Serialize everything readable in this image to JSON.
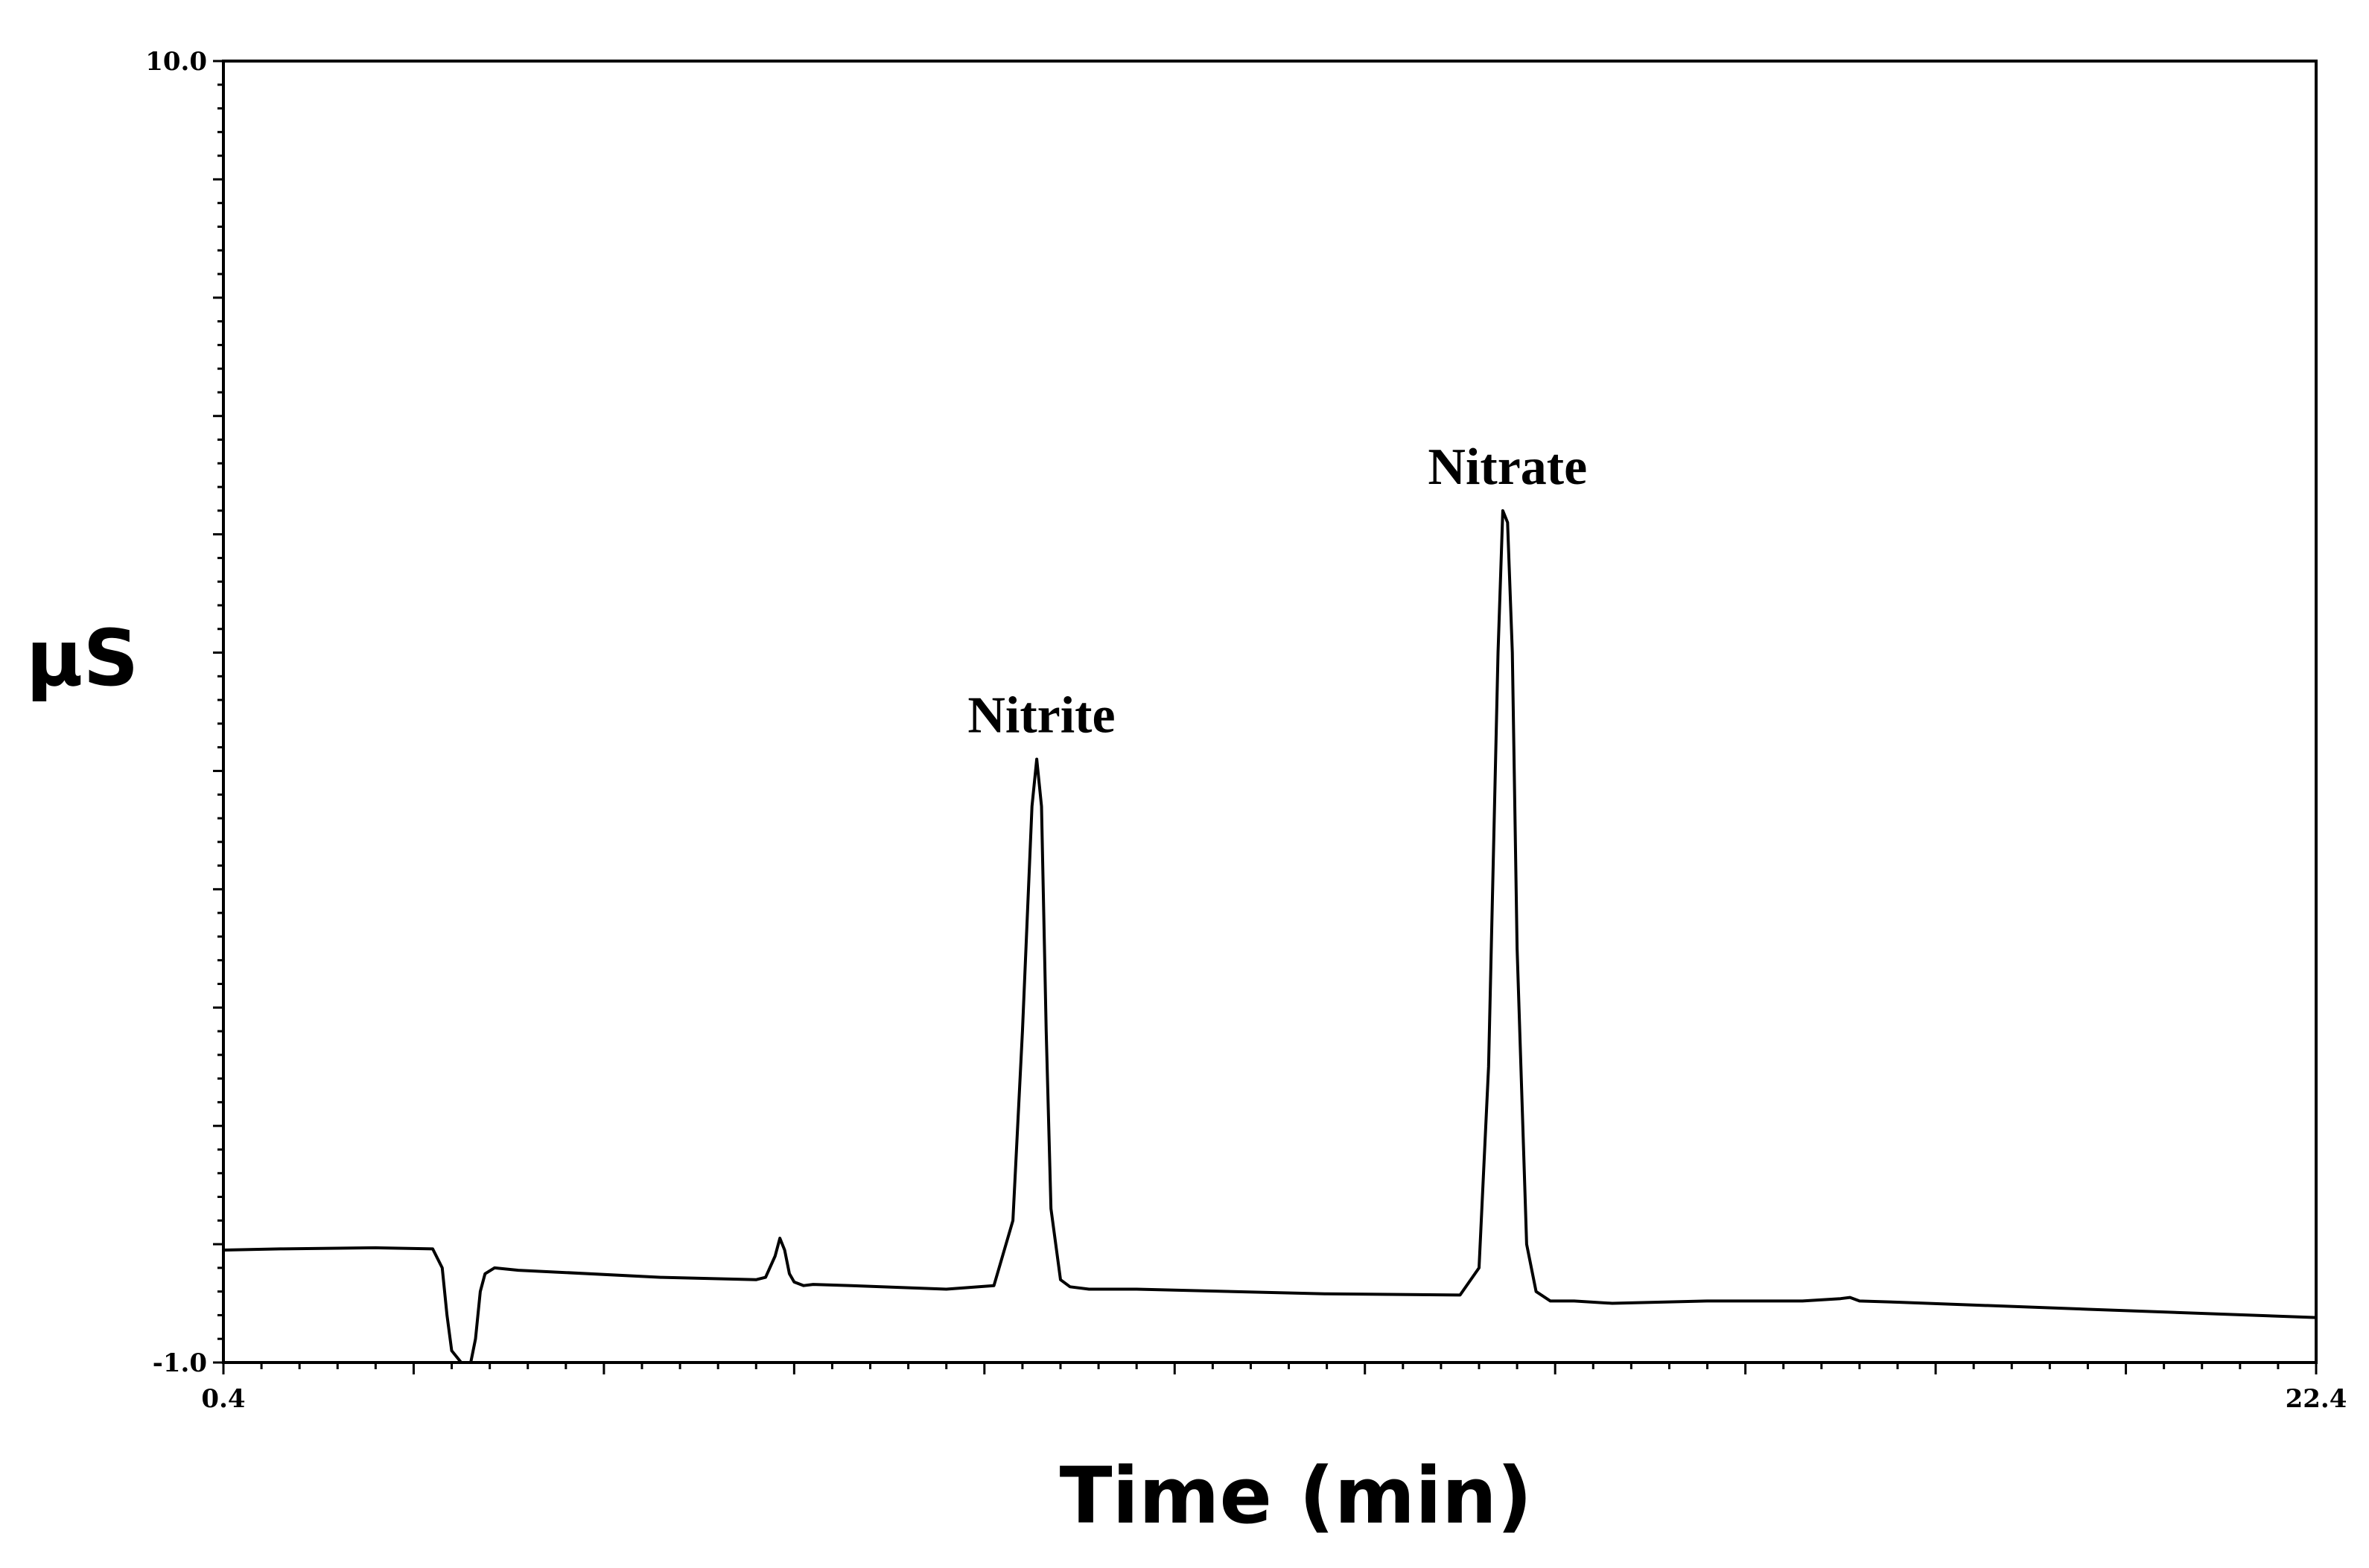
{
  "chart_data": {
    "type": "line",
    "title": "",
    "xlabel": "Time (min)",
    "ylabel": "µS",
    "xlim": [
      0.4,
      22.4
    ],
    "ylim": [
      -1.0,
      10.0
    ],
    "x_tick_labels": [
      "0.4",
      "22.4"
    ],
    "y_tick_labels": [
      "10.0",
      "-1.0"
    ],
    "grid": false,
    "line_color": "#000000",
    "annotations": [
      {
        "text": "Nitrite",
        "x": 9.0,
        "y": 4.2
      },
      {
        "text": "Nitrate",
        "x": 13.9,
        "y": 6.3
      }
    ],
    "series": [
      {
        "x": [
          0.4,
          1.0,
          2.0,
          2.6,
          2.7,
          2.75,
          2.8,
          2.9,
          3.0,
          3.05,
          3.1,
          3.15,
          3.25,
          3.5,
          4.0,
          5.0,
          6.0,
          6.1,
          6.2,
          6.25,
          6.3,
          6.35,
          6.4,
          6.5,
          6.6,
          7.0,
          8.0,
          8.5,
          8.7,
          8.8,
          8.9,
          8.95,
          9.0,
          9.05,
          9.1,
          9.2,
          9.3,
          9.5,
          10.0,
          12.0,
          13.4,
          13.6,
          13.7,
          13.8,
          13.85,
          13.9,
          13.95,
          14.0,
          14.1,
          14.2,
          14.35,
          14.6,
          15.0,
          16.0,
          17.0,
          17.4,
          17.5,
          17.6,
          18.0,
          20.0,
          22.4
        ],
        "y": [
          -0.05,
          -0.04,
          -0.03,
          -0.04,
          -0.2,
          -0.6,
          -0.9,
          -1.0,
          -1.0,
          -0.8,
          -0.4,
          -0.25,
          -0.2,
          -0.22,
          -0.24,
          -0.28,
          -0.3,
          -0.28,
          -0.1,
          0.05,
          -0.05,
          -0.25,
          -0.32,
          -0.35,
          -0.34,
          -0.35,
          -0.38,
          -0.35,
          0.2,
          1.8,
          3.7,
          4.1,
          3.7,
          1.8,
          0.3,
          -0.3,
          -0.36,
          -0.38,
          -0.38,
          -0.42,
          -0.43,
          -0.2,
          1.5,
          5.0,
          6.2,
          6.1,
          5.0,
          2.5,
          0.0,
          -0.4,
          -0.48,
          -0.48,
          -0.5,
          -0.48,
          -0.48,
          -0.46,
          -0.45,
          -0.48,
          -0.49,
          -0.55,
          -0.62
        ]
      }
    ]
  }
}
